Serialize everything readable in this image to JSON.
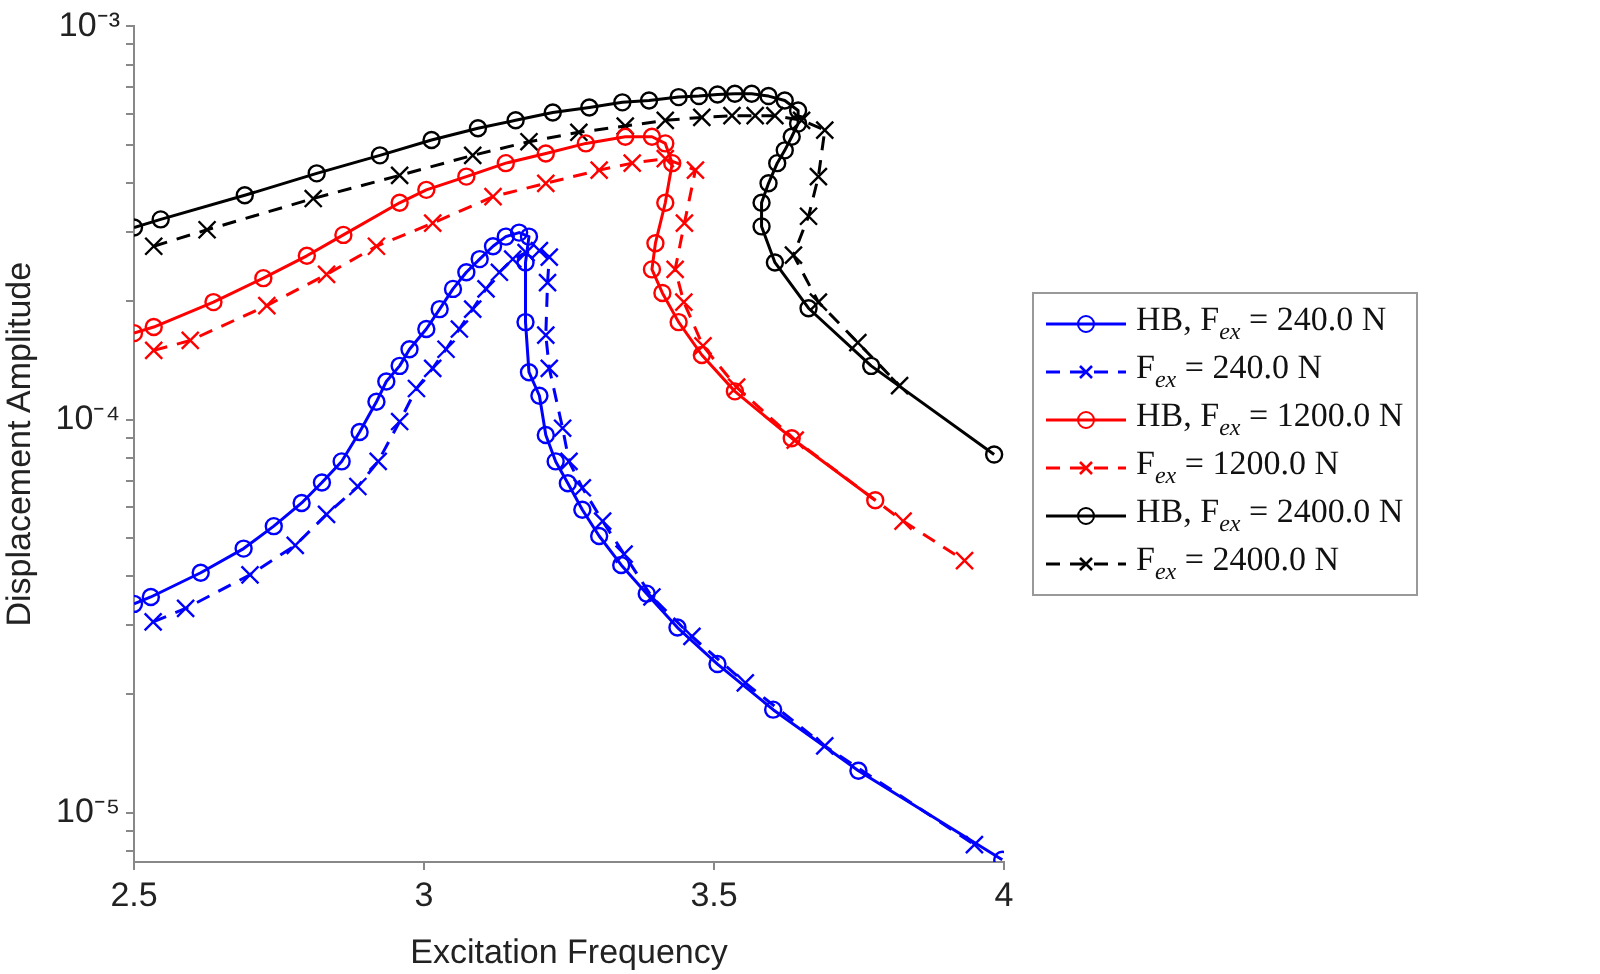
{
  "chart_data": {
    "type": "line",
    "xlabel": "Excitation Frequency",
    "ylabel": "Displacement Amplitude",
    "log": "y",
    "grid": false,
    "legend": "right",
    "xlim": [
      2.5,
      4
    ],
    "xticks": [
      2.5,
      3,
      3.5,
      4
    ],
    "ylim": [
      7.5e-06,
      0.001
    ],
    "yticks": [
      {
        "value": 8e-06,
        "label": null
      },
      {
        "value": 9e-06,
        "label": null
      },
      {
        "value": 1e-05,
        "label": "10⁻⁵"
      },
      {
        "value": 2e-05,
        "label": null
      },
      {
        "value": 3e-05,
        "label": null
      },
      {
        "value": 4e-05,
        "label": null
      },
      {
        "value": 5e-05,
        "label": null
      },
      {
        "value": 6e-05,
        "label": null
      },
      {
        "value": 7e-05,
        "label": null
      },
      {
        "value": 8e-05,
        "label": null
      },
      {
        "value": 9e-05,
        "label": null
      },
      {
        "value": 0.0001,
        "label": "10⁻⁴"
      },
      {
        "value": 0.0002,
        "label": null
      },
      {
        "value": 0.0003,
        "label": null
      },
      {
        "value": 0.0004,
        "label": null
      },
      {
        "value": 0.0005,
        "label": null
      },
      {
        "value": 0.0006,
        "label": null
      },
      {
        "value": 0.0007,
        "label": null
      },
      {
        "value": 0.0008,
        "label": null
      },
      {
        "value": 0.0009,
        "label": null
      },
      {
        "value": 0.001,
        "label": "10⁻³"
      }
    ],
    "series": [
      {
        "name": "HB, F$_{ex}$ = 240.0 N",
        "color": "#0000ff",
        "marker": "circle",
        "line_style": "solid",
        "x": [
          2.5,
          2.529,
          2.615,
          2.689,
          2.741,
          2.789,
          2.824,
          2.858,
          2.889,
          2.918,
          2.935,
          2.958,
          2.975,
          3.004,
          3.027,
          3.05,
          3.073,
          3.096,
          3.119,
          3.141,
          3.164,
          3.181,
          3.175,
          3.175,
          3.181,
          3.199,
          3.21,
          3.227,
          3.248,
          3.273,
          3.302,
          3.34,
          3.384,
          3.437,
          3.506,
          3.602,
          3.749,
          3.997
        ],
        "values": [
          3.4e-05,
          3.54e-05,
          4.08e-05,
          4.7e-05,
          5.36e-05,
          6.14e-05,
          6.92e-05,
          7.83e-05,
          9.3e-05,
          0.000111,
          0.000125,
          0.000137,
          0.000151,
          0.00017,
          0.000191,
          0.000215,
          0.000237,
          0.000256,
          0.000276,
          0.000292,
          0.000299,
          0.000292,
          0.000251,
          0.000177,
          0.000132,
          0.000115,
          9.14e-05,
          7.83e-05,
          6.89e-05,
          5.9e-05,
          5.06e-05,
          4.27e-05,
          3.61e-05,
          2.96e-05,
          2.39e-05,
          1.83e-05,
          1.28e-05,
          7.6e-06
        ]
      },
      {
        "name": "F$_{ex}$ = 240.0 N",
        "color": "#0000ff",
        "marker": "cross",
        "line_style": "dashed",
        "x": [
          2.533,
          2.589,
          2.7,
          2.778,
          2.832,
          2.886,
          2.921,
          2.958,
          2.987,
          3.015,
          3.038,
          3.061,
          3.084,
          3.107,
          3.13,
          3.153,
          3.176,
          3.199,
          3.216,
          3.213,
          3.21,
          3.216,
          3.239,
          3.25,
          3.273,
          3.308,
          3.345,
          3.393,
          3.462,
          3.554,
          3.691,
          3.949
        ],
        "values": [
          3.06e-05,
          3.31e-05,
          4.03e-05,
          4.79e-05,
          5.74e-05,
          6.76e-05,
          7.83e-05,
          9.89e-05,
          0.00012,
          0.000135,
          0.000151,
          0.00017,
          0.000191,
          0.000215,
          0.000237,
          0.000256,
          0.000266,
          0.000269,
          0.000259,
          0.000223,
          0.000164,
          0.000135,
          9.51e-05,
          7.83e-05,
          6.71e-05,
          5.52e-05,
          4.55e-05,
          3.54e-05,
          2.81e-05,
          2.14e-05,
          1.48e-05,
          8.3e-06
        ]
      },
      {
        "name": "HB, F$_{ex}$ = 1200.0 N",
        "color": "#ff0000",
        "marker": "circle",
        "line_style": "solid",
        "x": [
          2.5,
          2.534,
          2.637,
          2.723,
          2.798,
          2.861,
          2.958,
          3.004,
          3.073,
          3.141,
          3.21,
          3.279,
          3.347,
          3.393,
          3.416,
          3.428,
          3.416,
          3.399,
          3.393,
          3.411,
          3.439,
          3.479,
          3.536,
          3.634,
          3.778
        ],
        "values": [
          0.000166,
          0.000172,
          0.000199,
          0.000229,
          0.000261,
          0.000295,
          0.000356,
          0.000384,
          0.000415,
          0.000449,
          0.000475,
          0.000504,
          0.000524,
          0.000524,
          0.000504,
          0.000449,
          0.000356,
          0.000281,
          0.000241,
          0.00021,
          0.000177,
          0.000146,
          0.000118,
          8.97e-05,
          6.24e-05
        ]
      },
      {
        "name": "F$_{ex}$ = 1200.0 N",
        "color": "#ff0000",
        "marker": "cross",
        "line_style": "dashed",
        "x": [
          2.534,
          2.597,
          2.729,
          2.832,
          2.918,
          3.015,
          3.119,
          3.21,
          3.302,
          3.359,
          3.416,
          3.468,
          3.449,
          3.433,
          3.448,
          3.481,
          3.539,
          3.64,
          3.826,
          3.932
        ],
        "values": [
          0.00015,
          0.000159,
          0.000195,
          0.000234,
          0.000276,
          0.000316,
          0.000369,
          0.000399,
          0.000431,
          0.000449,
          0.000461,
          0.000431,
          0.000316,
          0.000241,
          0.000199,
          0.000154,
          0.000121,
          8.87e-05,
          5.52e-05,
          4.38e-05
        ]
      },
      {
        "name": "HB, F$_{ex}$ = 2400.0 N",
        "color": "#000000",
        "marker": "circle",
        "line_style": "solid",
        "x": [
          2.5,
          2.546,
          2.691,
          2.815,
          2.924,
          3.013,
          3.093,
          3.158,
          3.222,
          3.285,
          3.342,
          3.388,
          3.439,
          3.474,
          3.506,
          3.536,
          3.565,
          3.594,
          3.622,
          3.645,
          3.645,
          3.634,
          3.622,
          3.609,
          3.594,
          3.582,
          3.582,
          3.605,
          3.663,
          3.771,
          3.983
        ],
        "values": [
          0.000308,
          0.000323,
          0.000372,
          0.000423,
          0.00047,
          0.000514,
          0.000551,
          0.000577,
          0.000604,
          0.000622,
          0.000641,
          0.000648,
          0.000661,
          0.000665,
          0.000671,
          0.000674,
          0.000674,
          0.000665,
          0.000648,
          0.000611,
          0.000566,
          0.000524,
          0.000484,
          0.000449,
          0.000399,
          0.000356,
          0.00031,
          0.000251,
          0.000192,
          0.000137,
          8.15e-05
        ]
      },
      {
        "name": "F$_{ex}$ = 2400.0 N",
        "color": "#000000",
        "marker": "cross",
        "line_style": "dashed",
        "x": [
          2.534,
          2.626,
          2.809,
          2.958,
          3.084,
          3.181,
          3.267,
          3.347,
          3.416,
          3.479,
          3.531,
          3.571,
          3.605,
          3.651,
          3.691,
          3.68,
          3.663,
          3.637,
          3.68,
          3.748,
          3.82
        ],
        "values": [
          0.000276,
          0.000304,
          0.000365,
          0.000418,
          0.00047,
          0.000509,
          0.000538,
          0.000558,
          0.000577,
          0.000587,
          0.000593,
          0.000593,
          0.000593,
          0.000577,
          0.000545,
          0.000415,
          0.000329,
          0.000262,
          0.000199,
          0.000157,
          0.000122
        ]
      }
    ]
  }
}
